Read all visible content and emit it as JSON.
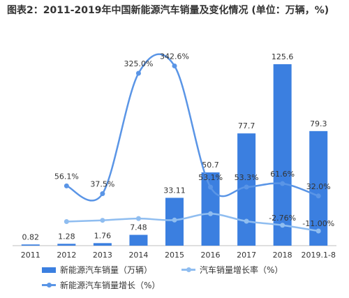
{
  "title": "图表2：2011-2019年中国新能源汽车销量及变化情况 (单位：万辆，%)",
  "chart_data": {
    "type": "bar",
    "categories": [
      "2011",
      "2012",
      "2013",
      "2014",
      "2015",
      "2016",
      "2017",
      "2018",
      "2019.1-8"
    ],
    "series": [
      {
        "name": "新能源汽车销量（万辆）",
        "kind": "bar",
        "color": "#3b7fe0",
        "values": [
          0.82,
          1.28,
          1.76,
          7.48,
          33.11,
          50.7,
          77.7,
          125.6,
          79.3
        ],
        "labels": [
          "0.82",
          "1.28",
          "1.76",
          "7.48",
          "33.11",
          "50.7",
          "77.7",
          "125.6",
          "79.3"
        ]
      },
      {
        "name": "汽车销量增长率（%）",
        "kind": "line",
        "color": "#8fbdf0",
        "values": [
          null,
          2.5,
          4.3,
          6.9,
          4.7,
          13.7,
          3.0,
          -2.76,
          -11.0
        ],
        "labels": [
          "",
          "",
          "",
          "",
          "",
          "",
          "",
          "-2.76%",
          "-11.00%"
        ]
      },
      {
        "name": "新能源汽车销量增长（%）",
        "kind": "line",
        "color": "#5a95e6",
        "values": [
          null,
          56.1,
          37.5,
          325.0,
          342.6,
          53.1,
          53.3,
          61.6,
          32.0
        ],
        "labels": [
          "",
          "56.1%",
          "37.5%",
          "325.0%",
          "342.6%",
          "53.1%",
          "53.3%",
          "61.6%",
          "32.0%"
        ]
      }
    ],
    "grid": false,
    "legend": "bottom"
  }
}
